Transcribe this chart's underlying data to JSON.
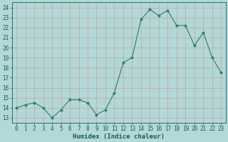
{
  "x": [
    0,
    1,
    2,
    3,
    4,
    5,
    6,
    7,
    8,
    9,
    10,
    11,
    12,
    13,
    14,
    15,
    16,
    17,
    18,
    19,
    20,
    21,
    22,
    23
  ],
  "y": [
    14.0,
    14.3,
    14.5,
    14.0,
    13.0,
    13.8,
    14.8,
    14.8,
    14.5,
    13.3,
    13.8,
    15.5,
    18.5,
    19.0,
    22.8,
    23.8,
    23.2,
    23.7,
    22.2,
    22.2,
    20.2,
    21.5,
    19.0,
    17.5
  ],
  "line_color": "#2e7d6e",
  "marker": "D",
  "marker_size": 2.2,
  "bg_color": "#b2d8d8",
  "grid_color": "#c8a0a0",
  "xlabel": "Humidex (Indice chaleur)",
  "xlim": [
    -0.5,
    23.5
  ],
  "ylim": [
    12.5,
    24.5
  ],
  "yticks": [
    13,
    14,
    15,
    16,
    17,
    18,
    19,
    20,
    21,
    22,
    23,
    24
  ],
  "xticks": [
    0,
    1,
    2,
    3,
    4,
    5,
    6,
    7,
    8,
    9,
    10,
    11,
    12,
    13,
    14,
    15,
    16,
    17,
    18,
    19,
    20,
    21,
    22,
    23
  ],
  "font_color": "#1a5a5a",
  "tick_fontsize": 5.5,
  "label_fontsize": 6.5
}
